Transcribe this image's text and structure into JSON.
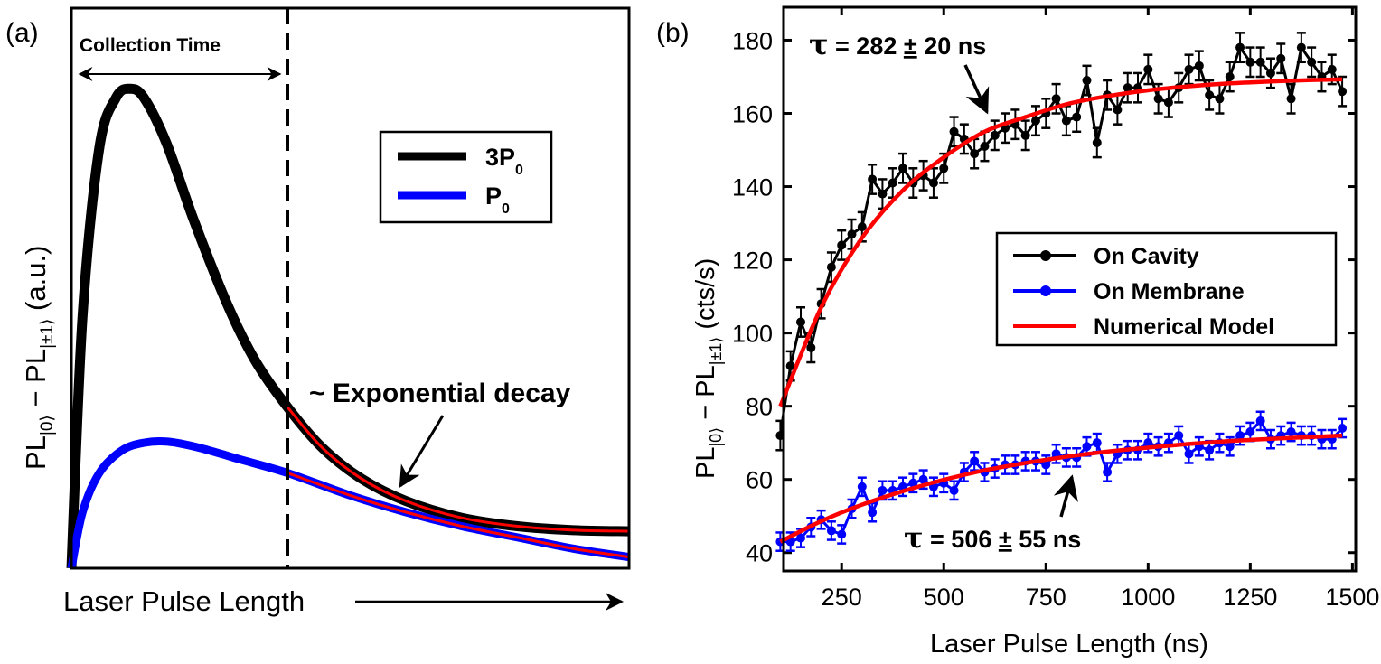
{
  "chart_data": [
    {
      "panel_label": "(a)",
      "type": "line",
      "xlabel": "Laser Pulse Length",
      "ylabel": {
        "prefix": "PL",
        "sub1": "|0⟩",
        "mid": " − PL",
        "sub2": "|±1⟩",
        "suffix": " (a.u.)"
      },
      "grid": false,
      "legend_placement": "top-right",
      "series": [
        {
          "name": {
            "main": "3P",
            "sub": "0"
          },
          "color": "#000000"
        },
        {
          "name": {
            "main": "P",
            "sub": "0"
          },
          "color": "#0000ff"
        }
      ],
      "fit_overlay_color": "#ff0000",
      "annotations": {
        "collection_time": "Collection Time",
        "exp_decay": "~ Exponential decay"
      }
    },
    {
      "panel_label": "(b)",
      "type": "scatter",
      "xlabel": "Laser Pulse Length (ns)",
      "ylabel": {
        "prefix": "PL",
        "sub1": "|0⟩",
        "mid": " − PL",
        "sub2": "|±1⟩",
        "suffix": " (cts/s)"
      },
      "xlim": [
        108,
        1508
      ],
      "ylim": [
        35,
        189
      ],
      "xticks": [
        250,
        500,
        750,
        1000,
        1250,
        1500
      ],
      "yticks": [
        40,
        60,
        80,
        100,
        120,
        140,
        160,
        180
      ],
      "grid": false,
      "legend_placement": "center-right",
      "x": [
        100,
        125,
        150,
        175,
        200,
        225,
        250,
        275,
        300,
        325,
        350,
        375,
        400,
        425,
        450,
        475,
        500,
        525,
        550,
        575,
        600,
        625,
        650,
        675,
        700,
        725,
        750,
        775,
        800,
        825,
        850,
        875,
        900,
        925,
        950,
        975,
        1000,
        1025,
        1050,
        1075,
        1100,
        1125,
        1150,
        1175,
        1200,
        1225,
        1250,
        1275,
        1300,
        1325,
        1350,
        1375,
        1400,
        1425,
        1450,
        1475
      ],
      "series": [
        {
          "name": "On Cavity",
          "color": "#000000",
          "yerr": 4,
          "values": [
            72,
            91,
            103,
            96,
            108,
            118,
            124,
            127,
            129,
            142,
            138,
            141,
            145,
            141,
            143,
            141,
            145,
            155,
            153,
            149,
            151,
            154,
            156,
            157,
            154,
            158,
            160,
            164,
            158,
            159,
            169,
            152,
            165,
            161,
            167,
            167,
            172,
            164,
            163,
            167,
            172,
            173,
            165,
            164,
            170,
            178,
            174,
            174,
            171,
            175,
            164,
            178,
            174,
            170,
            172,
            166
          ]
        },
        {
          "name": "On Membrane",
          "color": "#0000ff",
          "yerr": 2.5,
          "values": [
            43,
            43,
            44,
            47,
            49,
            46,
            45,
            52,
            58,
            51,
            57,
            57,
            58,
            59,
            60,
            58,
            59,
            57,
            62,
            65,
            62,
            63,
            64,
            64,
            65,
            65,
            64,
            67,
            66,
            66,
            69,
            70,
            62,
            67,
            68,
            68,
            70,
            69,
            70,
            72,
            67,
            69,
            68,
            70,
            69,
            72,
            73,
            76,
            71,
            72,
            73,
            72,
            72,
            71,
            71,
            74
          ]
        },
        {
          "name": "Numerical Model",
          "color": "#ff0000",
          "type": "line",
          "fits": [
            {
              "x": [
                100,
                200,
                300,
                400,
                500,
                600,
                700,
                800,
                900,
                1000,
                1100,
                1200,
                1300,
                1400,
                1475
              ],
              "values": [
                80,
                107,
                126,
                139,
                148,
                155,
                159,
                162.5,
                164.7,
                166.3,
                167.4,
                168.2,
                168.7,
                169.1,
                169.3
              ]
            },
            {
              "x": [
                100,
                200,
                300,
                400,
                500,
                600,
                700,
                800,
                900,
                1000,
                1100,
                1200,
                1300,
                1400,
                1475
              ],
              "values": [
                43,
                48.6,
                53.1,
                56.8,
                59.9,
                62.5,
                64.5,
                66.2,
                67.6,
                68.7,
                69.7,
                70.5,
                71.1,
                71.6,
                72
              ]
            }
          ]
        }
      ],
      "annotations": {
        "tau_cavity": {
          "symbol": "τ",
          "eq": " = 282 ",
          "pm": "±",
          "rest": " 20 ns"
        },
        "tau_membrane": {
          "symbol": "τ",
          "eq": " = 506 ",
          "pm": "±",
          "rest": " 55 ns"
        }
      }
    }
  ]
}
